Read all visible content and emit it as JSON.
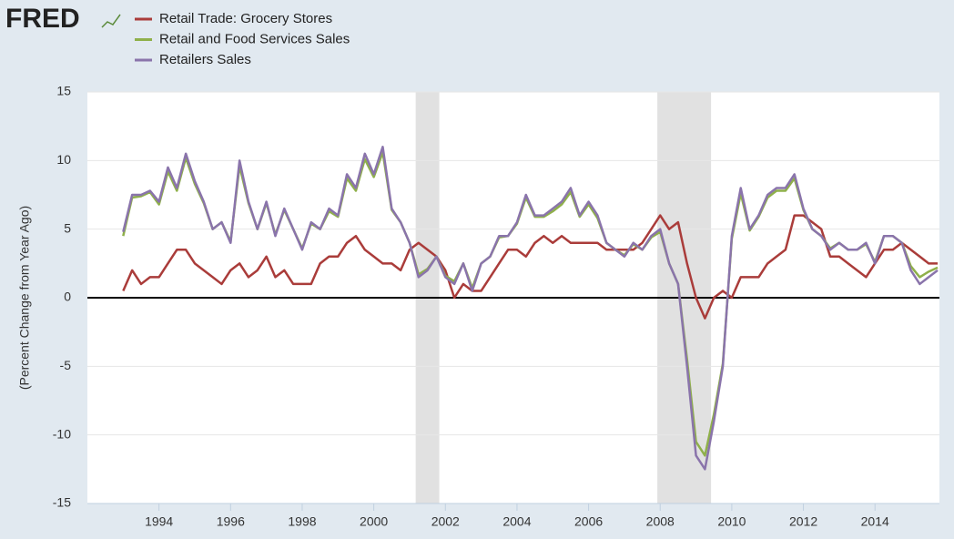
{
  "chart_data": {
    "type": "line",
    "logo": "FRED",
    "ylabel": "(Percent Change from Year Ago)",
    "xlim": [
      1992,
      2015.8
    ],
    "ylim": [
      -15,
      15
    ],
    "xticks": [
      1994,
      1996,
      1998,
      2000,
      2002,
      2004,
      2006,
      2008,
      2010,
      2012,
      2014
    ],
    "yticks": [
      -15,
      -10,
      -5,
      0,
      5,
      10,
      15
    ],
    "grid": true,
    "legend": "top-left",
    "recessions": [
      [
        2001.17,
        2001.83
      ],
      [
        2007.92,
        2009.42
      ]
    ],
    "x": [
      1993.0,
      1993.25,
      1993.5,
      1993.75,
      1994.0,
      1994.25,
      1994.5,
      1994.75,
      1995.0,
      1995.25,
      1995.5,
      1995.75,
      1996.0,
      1996.25,
      1996.5,
      1996.75,
      1997.0,
      1997.25,
      1997.5,
      1997.75,
      1998.0,
      1998.25,
      1998.5,
      1998.75,
      1999.0,
      1999.25,
      1999.5,
      1999.75,
      2000.0,
      2000.25,
      2000.5,
      2000.75,
      2001.0,
      2001.25,
      2001.5,
      2001.75,
      2002.0,
      2002.25,
      2002.5,
      2002.75,
      2003.0,
      2003.25,
      2003.5,
      2003.75,
      2004.0,
      2004.25,
      2004.5,
      2004.75,
      2005.0,
      2005.25,
      2005.5,
      2005.75,
      2006.0,
      2006.25,
      2006.5,
      2006.75,
      2007.0,
      2007.25,
      2007.5,
      2007.75,
      2008.0,
      2008.25,
      2008.5,
      2008.75,
      2009.0,
      2009.25,
      2009.5,
      2009.75,
      2010.0,
      2010.25,
      2010.5,
      2010.75,
      2011.0,
      2011.25,
      2011.5,
      2011.75,
      2012.0,
      2012.25,
      2012.5,
      2012.75,
      2013.0,
      2013.25,
      2013.5,
      2013.75,
      2014.0,
      2014.25,
      2014.5,
      2014.75,
      2015.0,
      2015.25,
      2015.5,
      2015.75
    ],
    "series": [
      {
        "name": "Retail Trade: Grocery Stores",
        "color": "#aa3c3a",
        "values": [
          0.5,
          2.0,
          1.0,
          1.5,
          1.5,
          2.5,
          3.5,
          3.5,
          2.5,
          2.0,
          1.5,
          1.0,
          2.0,
          2.5,
          1.5,
          2.0,
          3.0,
          1.5,
          2.0,
          1.0,
          1.0,
          1.0,
          2.5,
          3.0,
          3.0,
          4.0,
          4.5,
          3.5,
          3.0,
          2.5,
          2.5,
          2.0,
          3.5,
          4.0,
          3.5,
          3.0,
          2.0,
          0.0,
          1.0,
          0.5,
          0.5,
          1.5,
          2.5,
          3.5,
          3.5,
          3.0,
          4.0,
          4.5,
          4.0,
          4.5,
          4.0,
          4.0,
          4.0,
          4.0,
          3.5,
          3.5,
          3.5,
          3.5,
          4.0,
          5.0,
          6.0,
          5.0,
          5.5,
          2.5,
          0.0,
          -1.5,
          0.0,
          0.5,
          0.0,
          1.5,
          1.5,
          1.5,
          2.5,
          3.0,
          3.5,
          6.0,
          6.0,
          5.5,
          5.0,
          3.0,
          3.0,
          2.5,
          2.0,
          1.5,
          2.5,
          3.5,
          3.5,
          4.0,
          3.5,
          3.0,
          2.5,
          2.5
        ]
      },
      {
        "name": "Retail and Food Services Sales",
        "color": "#8fb04a",
        "values": [
          4.5,
          7.3,
          7.4,
          7.7,
          6.8,
          9.2,
          7.8,
          10.2,
          8.3,
          6.9,
          5.0,
          5.5,
          4.1,
          9.6,
          6.9,
          5.0,
          6.9,
          4.6,
          6.4,
          5.0,
          3.6,
          5.4,
          5.0,
          6.3,
          5.9,
          8.7,
          7.8,
          10.1,
          8.8,
          10.6,
          6.4,
          5.5,
          4.0,
          1.7,
          2.1,
          3.0,
          1.6,
          1.2,
          2.5,
          0.7,
          2.5,
          3.0,
          4.4,
          4.5,
          5.4,
          7.3,
          5.9,
          5.9,
          6.3,
          6.8,
          7.7,
          5.9,
          6.8,
          5.8,
          4.0,
          3.5,
          3.1,
          3.9,
          3.5,
          4.4,
          4.8,
          2.5,
          1.0,
          -4.5,
          -10.5,
          -11.5,
          -8.5,
          -4.8,
          4.3,
          7.6,
          4.9,
          5.9,
          7.3,
          7.8,
          7.8,
          8.7,
          6.4,
          5.0,
          4.5,
          3.6,
          4.0,
          3.5,
          3.5,
          3.9,
          2.6,
          4.5,
          4.5,
          4.0,
          2.3,
          1.5,
          1.9,
          2.2
        ]
      },
      {
        "name": "Retailers Sales",
        "color": "#8a74ab",
        "values": [
          4.8,
          7.5,
          7.5,
          7.8,
          7.0,
          9.5,
          8.0,
          10.5,
          8.5,
          7.0,
          5.0,
          5.5,
          4.0,
          10.0,
          7.0,
          5.0,
          7.0,
          4.5,
          6.5,
          5.0,
          3.5,
          5.5,
          5.0,
          6.5,
          6.0,
          9.0,
          8.0,
          10.5,
          9.0,
          11.0,
          6.5,
          5.5,
          4.0,
          1.5,
          2.0,
          3.0,
          1.5,
          1.0,
          2.5,
          0.5,
          2.5,
          3.0,
          4.5,
          4.5,
          5.5,
          7.5,
          6.0,
          6.0,
          6.5,
          7.0,
          8.0,
          6.0,
          7.0,
          6.0,
          4.0,
          3.5,
          3.0,
          4.0,
          3.5,
          4.5,
          5.0,
          2.5,
          1.0,
          -5.0,
          -11.5,
          -12.5,
          -9.0,
          -5.0,
          4.5,
          8.0,
          5.0,
          6.0,
          7.5,
          8.0,
          8.0,
          9.0,
          6.5,
          5.0,
          4.5,
          3.5,
          4.0,
          3.5,
          3.5,
          4.0,
          2.5,
          4.5,
          4.5,
          4.0,
          2.0,
          1.0,
          1.5,
          2.0
        ]
      }
    ]
  }
}
